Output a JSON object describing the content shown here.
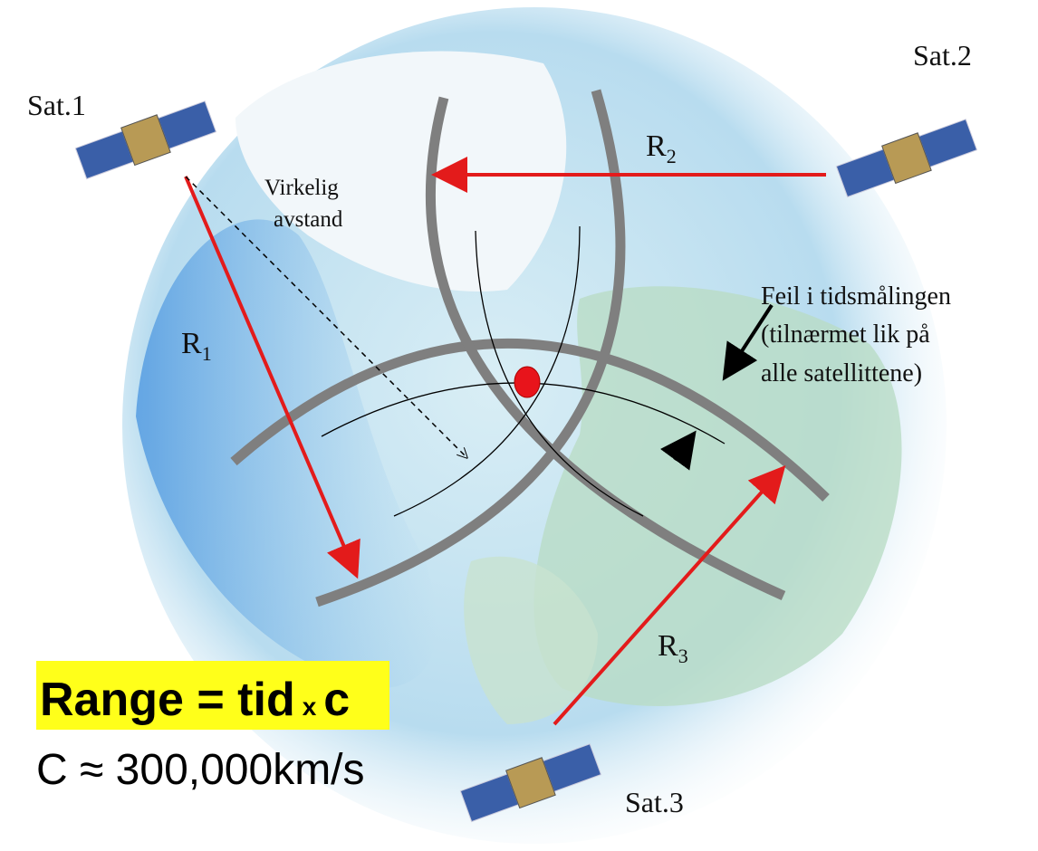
{
  "satellites": [
    {
      "label": "Sat.1"
    },
    {
      "label": "Sat.2"
    },
    {
      "label": "Sat.3"
    }
  ],
  "ranges": [
    {
      "symbol": "R",
      "subscript": "1"
    },
    {
      "symbol": "R",
      "subscript": "2"
    },
    {
      "symbol": "R",
      "subscript": "3"
    }
  ],
  "annotations": {
    "true_distance": [
      "Virkelig",
      "avstand"
    ],
    "clock_error": [
      "Feil i tidsmålingen",
      "(tilnærmet lik på",
      "alle satellittene)"
    ]
  },
  "formula": {
    "left": "Range = tid",
    "operator": "x",
    "right": "c"
  },
  "speed": "C ≈ 300,000km/s"
}
